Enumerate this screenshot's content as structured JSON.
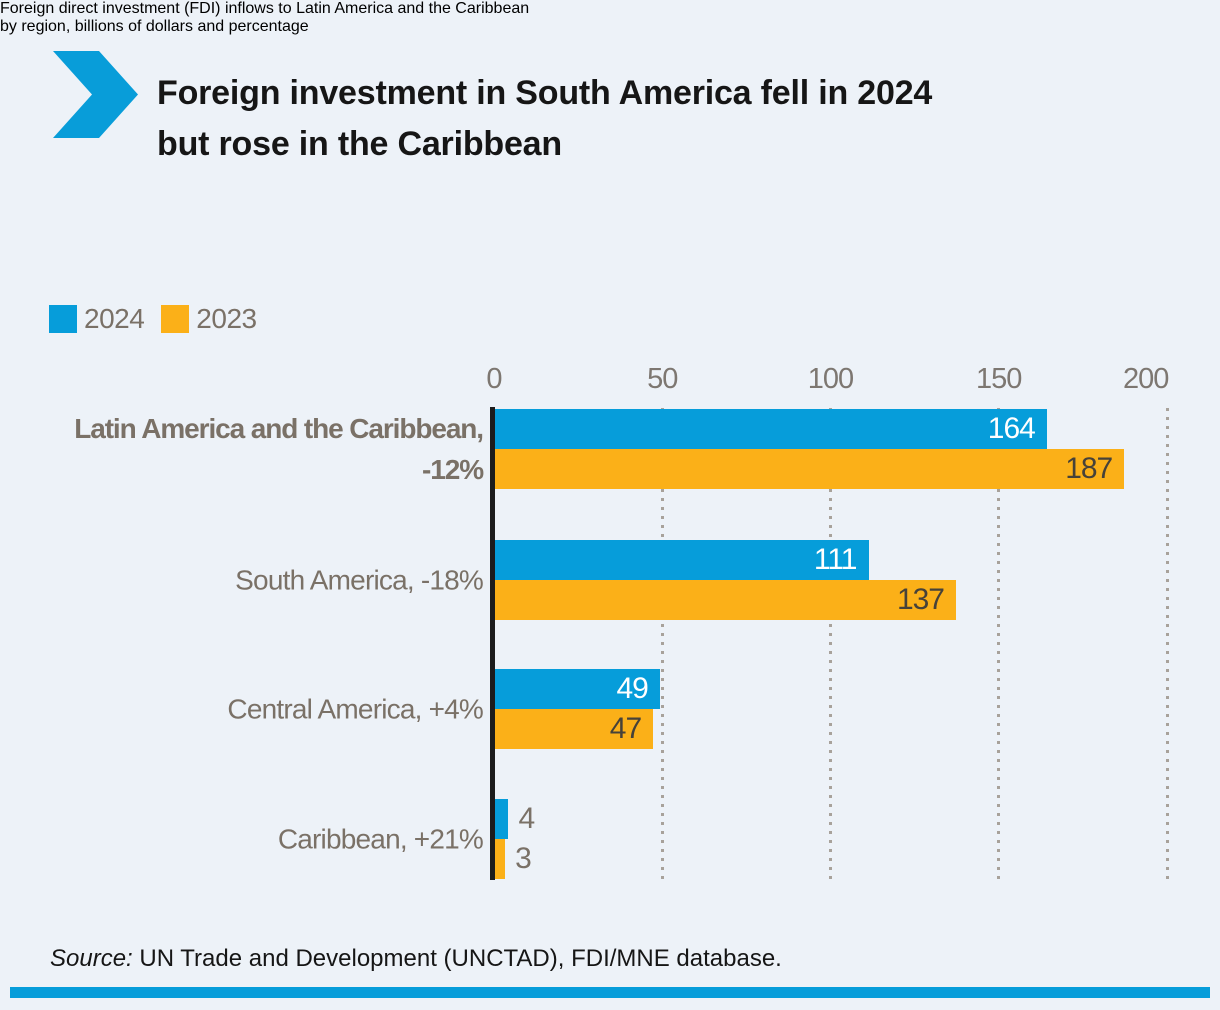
{
  "header": {
    "title_lines": [
      "Foreign investment in South America fell in 2024",
      "but rose in the Caribbean"
    ],
    "chevron_color": "#089dd9"
  },
  "subtitle_lines": [
    "Foreign direct investment (FDI) inflows to Latin America and the Caribbean",
    "by region, billions of dollars and percentage"
  ],
  "chart_data": {
    "type": "bar",
    "orientation": "horizontal",
    "title": "Foreign investment in South America fell in 2024 but rose in the Caribbean",
    "subtitle": "Foreign direct investment (FDI) inflows to Latin America and the Caribbean by region, billions of dollars and percentage",
    "unit": "billions of dollars",
    "xlim": [
      0,
      200
    ],
    "x_ticks": [
      0,
      50,
      100,
      150,
      200
    ],
    "gridlines": "dotted-vertical",
    "legend_position": "top-left",
    "series": [
      {
        "name": "2024",
        "color": "#069dda"
      },
      {
        "name": "2023",
        "color": "#fbb018"
      }
    ],
    "rows": [
      {
        "category": "Latin America and the Caribbean, -12%",
        "category_lines": [
          "Latin America and the Caribbean,",
          "-12%"
        ],
        "bold": true,
        "values": [
          164,
          187
        ]
      },
      {
        "category": "South America, -18%",
        "category_lines": [
          "South America, -18%"
        ],
        "bold": false,
        "values": [
          111,
          137
        ]
      },
      {
        "category": "Central America, +4%",
        "category_lines": [
          "Central America, +4%"
        ],
        "bold": false,
        "values": [
          49,
          47
        ]
      },
      {
        "category": "Caribbean, +21%",
        "category_lines": [
          "Caribbean, +21%"
        ],
        "bold": false,
        "values": [
          4,
          3
        ]
      }
    ]
  },
  "source": {
    "prefix": "Source:",
    "text": " UN Trade and Development (UNCTAD), FDI/MNE database."
  },
  "colors": {
    "background": "#edf2f8",
    "accent_blue": "#069dda",
    "bar_orange": "#fbb018",
    "axis_line": "#1c1c1c",
    "gridline": "#a8a29b",
    "text_dark": "#161616",
    "text_gray": "#7a7167",
    "value_on_blue": "#ffffff",
    "value_on_orange": "#474239"
  }
}
